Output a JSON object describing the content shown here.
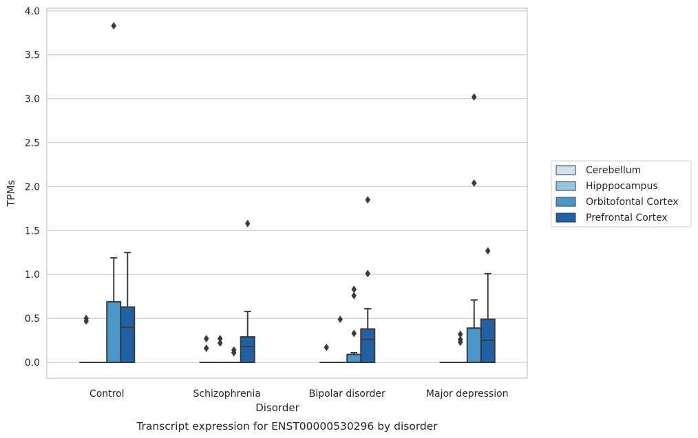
{
  "caption": "Transcript expression for ENST00000530296 by disorder",
  "chart_data": {
    "type": "box",
    "xlabel": "Disorder",
    "ylabel": "TPMs",
    "ylim": [
      -0.18,
      4.03
    ],
    "yticks": [
      "0.0",
      "0.5",
      "1.0",
      "1.5",
      "2.0",
      "2.5",
      "3.0",
      "3.5",
      "4.0"
    ],
    "ytick_values": [
      0,
      0.5,
      1.0,
      1.5,
      2.0,
      2.5,
      3.0,
      3.5,
      4.0
    ],
    "grid": true,
    "legend_position": "right",
    "categories": [
      "Control",
      "Schizophrenia",
      "Bipolar disorder",
      "Major depression"
    ],
    "series": [
      {
        "name": "Cerebellum",
        "color": "#d0e1f2",
        "boxes": [
          {
            "q1": 0,
            "median": 0,
            "q3": 0,
            "whisker_low": 0,
            "whisker_high": 0,
            "outliers": [
              0.47,
              0.5
            ]
          },
          {
            "q1": 0,
            "median": 0,
            "q3": 0,
            "whisker_low": 0,
            "whisker_high": 0,
            "outliers": [
              0.16,
              0.27
            ]
          },
          {
            "q1": 0,
            "median": 0,
            "q3": 0,
            "whisker_low": 0,
            "whisker_high": 0,
            "outliers": [
              0.17
            ]
          },
          {
            "q1": 0,
            "median": 0,
            "q3": 0,
            "whisker_low": 0,
            "whisker_high": 0,
            "outliers": []
          }
        ]
      },
      {
        "name": "Hipppocampus",
        "color": "#94c4df",
        "boxes": [
          {
            "q1": 0,
            "median": 0,
            "q3": 0,
            "whisker_low": 0,
            "whisker_high": 0,
            "outliers": []
          },
          {
            "q1": 0,
            "median": 0,
            "q3": 0,
            "whisker_low": 0,
            "whisker_high": 0,
            "outliers": [
              0.22,
              0.27
            ]
          },
          {
            "q1": 0,
            "median": 0,
            "q3": 0,
            "whisker_low": 0,
            "whisker_high": 0,
            "outliers": [
              0.49
            ]
          },
          {
            "q1": 0,
            "median": 0,
            "q3": 0,
            "whisker_low": 0,
            "whisker_high": 0,
            "outliers": [
              0.23,
              0.26,
              0.32
            ]
          }
        ]
      },
      {
        "name": "Orbitofontal Cortex",
        "color": "#4a98c9",
        "boxes": [
          {
            "q1": 0,
            "median": 0,
            "q3": 0.69,
            "whisker_low": 0,
            "whisker_high": 1.19,
            "outliers": [
              3.83
            ]
          },
          {
            "q1": 0,
            "median": 0,
            "q3": 0,
            "whisker_low": 0,
            "whisker_high": 0,
            "outliers": [
              0.11,
              0.14
            ]
          },
          {
            "q1": 0,
            "median": 0,
            "q3": 0.09,
            "whisker_low": 0,
            "whisker_high": 0.11,
            "outliers": [
              0.33,
              0.76,
              0.83
            ]
          },
          {
            "q1": 0,
            "median": 0,
            "q3": 0.39,
            "whisker_low": 0,
            "whisker_high": 0.71,
            "outliers": [
              2.04,
              3.02
            ]
          }
        ]
      },
      {
        "name": "Prefrontal Cortex",
        "color": "#2060a4",
        "boxes": [
          {
            "q1": 0,
            "median": 0.4,
            "q3": 0.63,
            "whisker_low": 0,
            "whisker_high": 1.25,
            "outliers": []
          },
          {
            "q1": 0,
            "median": 0.18,
            "q3": 0.29,
            "whisker_low": 0,
            "whisker_high": 0.58,
            "outliers": [
              1.58
            ]
          },
          {
            "q1": 0,
            "median": 0.26,
            "q3": 0.38,
            "whisker_low": 0,
            "whisker_high": 0.61,
            "outliers": [
              1.01,
              1.85
            ]
          },
          {
            "q1": 0,
            "median": 0.25,
            "q3": 0.49,
            "whisker_low": 0,
            "whisker_high": 1.01,
            "outliers": [
              1.27
            ]
          }
        ]
      }
    ]
  }
}
